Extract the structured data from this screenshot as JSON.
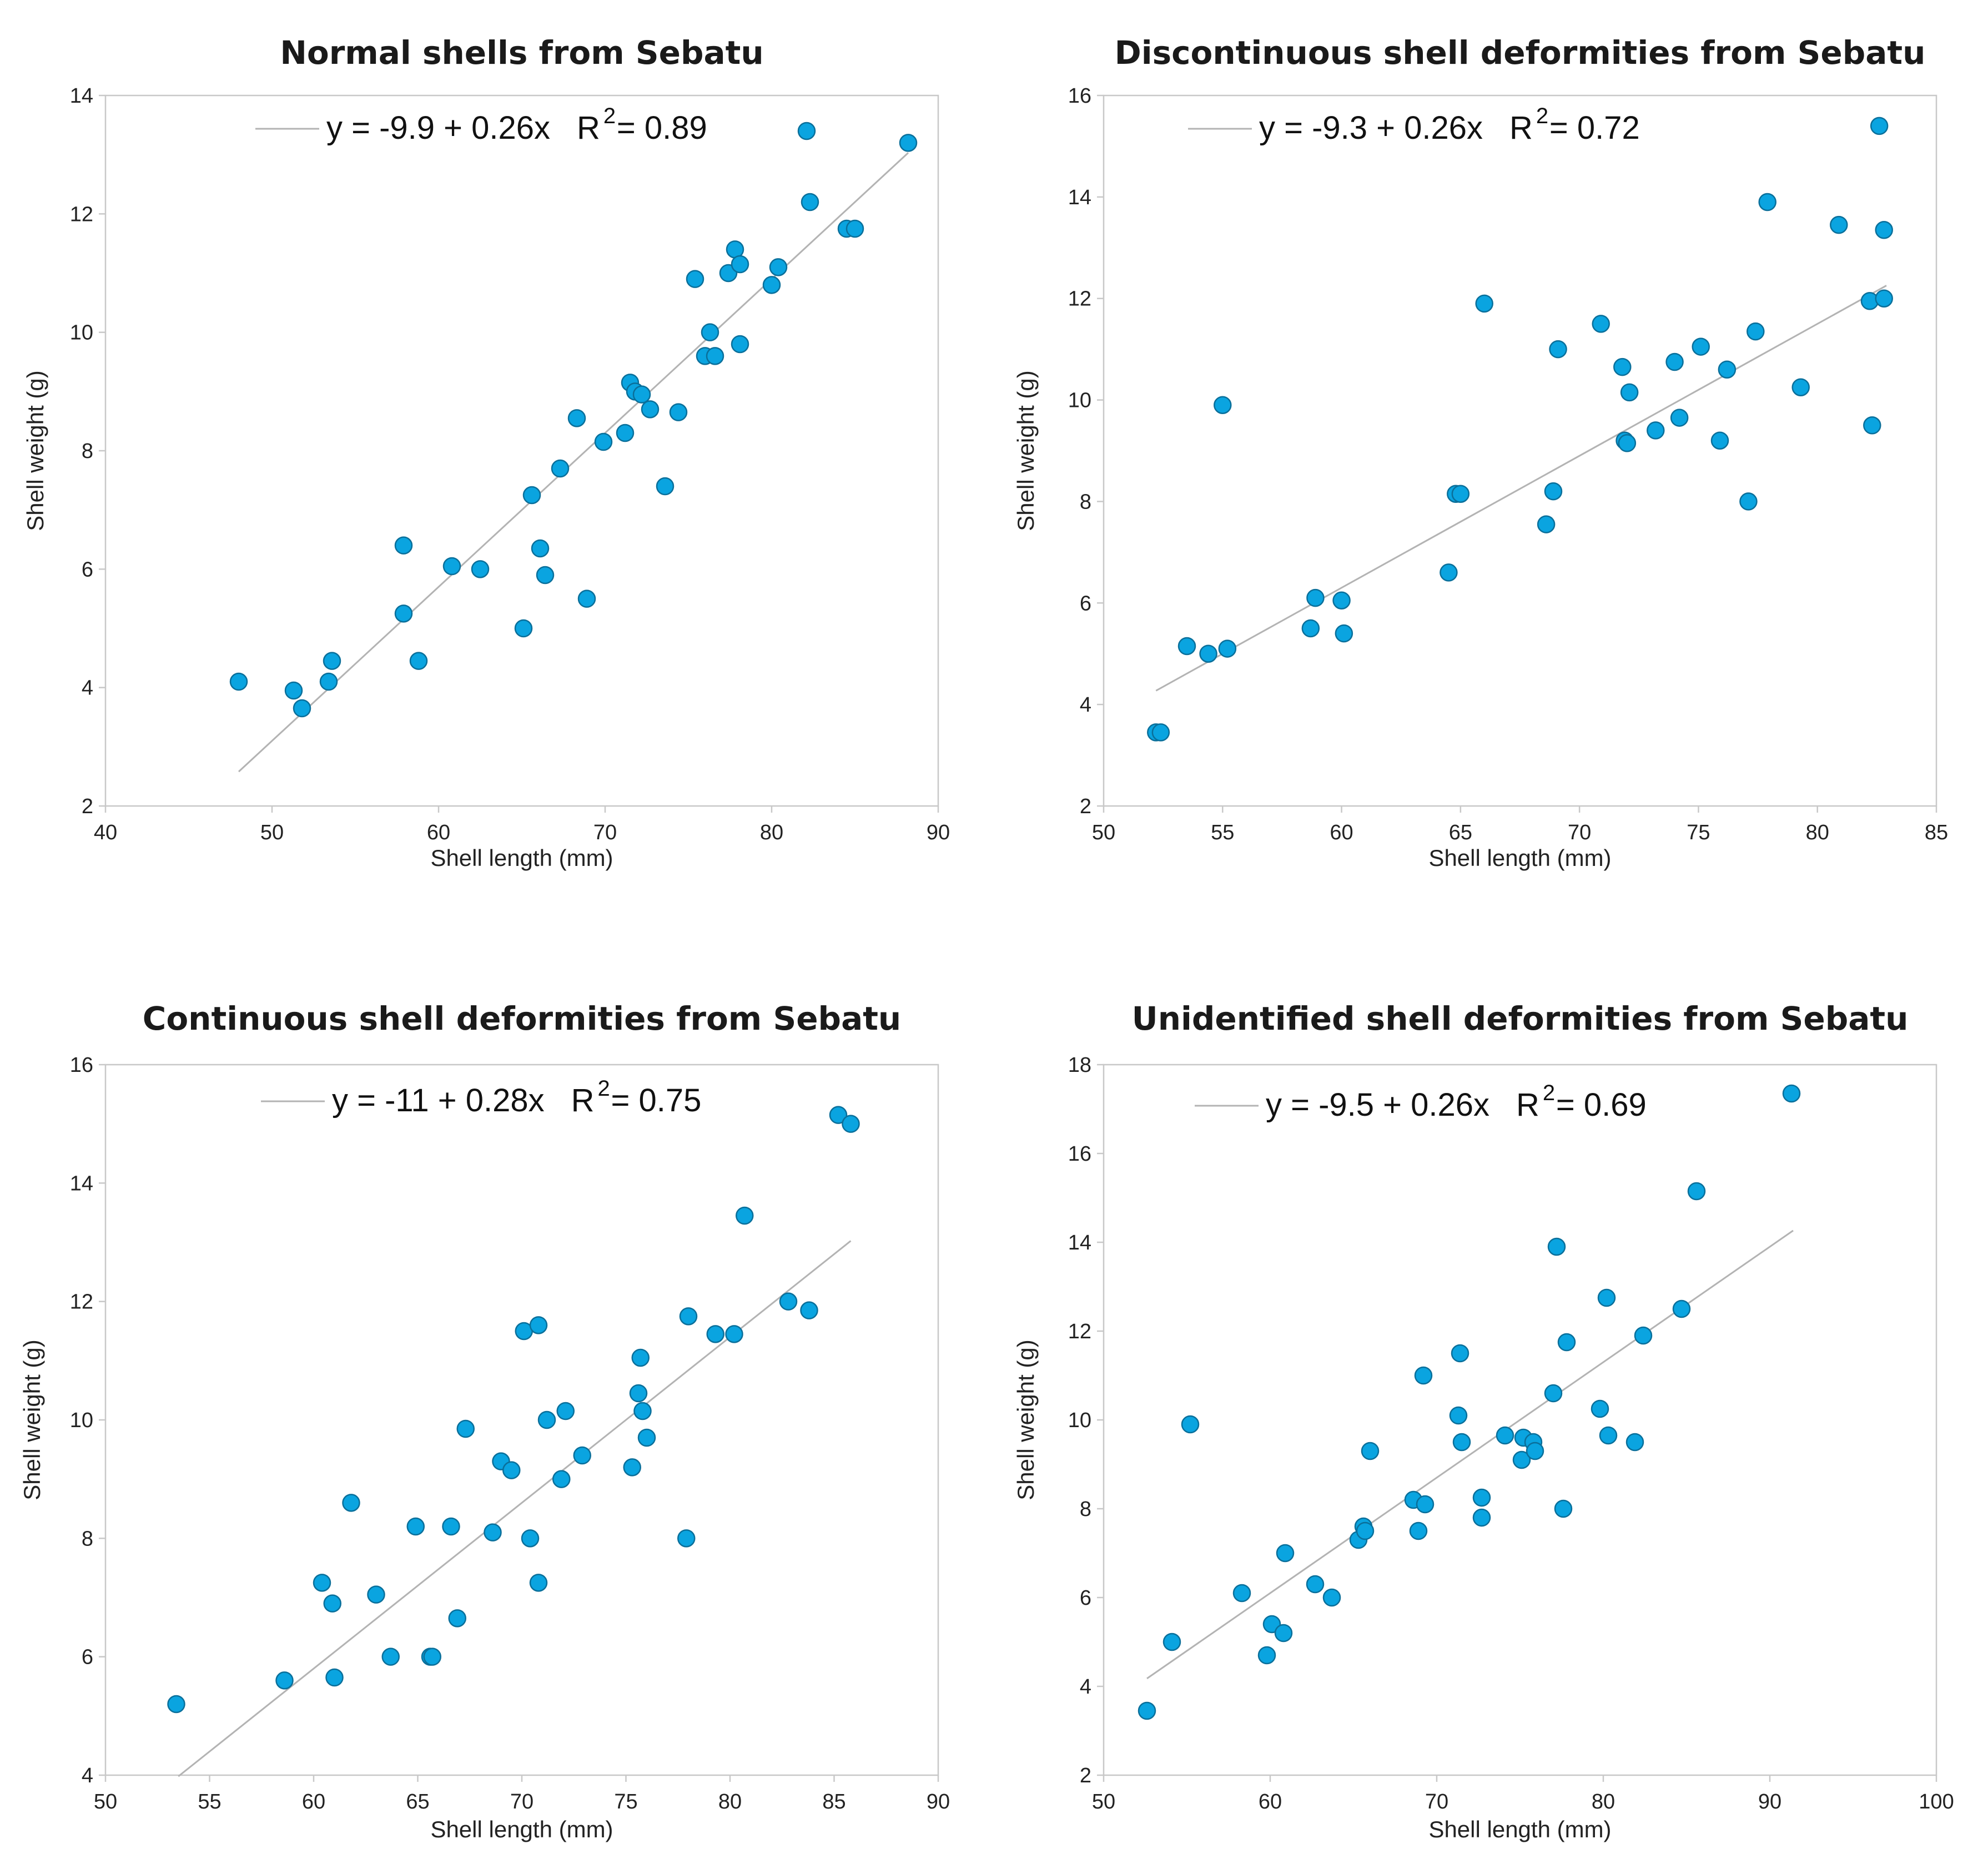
{
  "chart_data": [
    {
      "type": "scatter",
      "title": "Normal shells from Sebatu",
      "xlabel": "Shell length (mm)",
      "ylabel": "Shell weight (g)",
      "xlim": [
        40,
        90
      ],
      "ylim": [
        2,
        14
      ],
      "xticks": [
        40,
        50,
        60,
        70,
        80,
        90
      ],
      "yticks": [
        2,
        4,
        6,
        8,
        10,
        12,
        14
      ],
      "legend": {
        "equation": "y = -9.9 + 0.26x",
        "r_label": "R",
        "r_sup": "2",
        "r_value": "= 0.89"
      },
      "fit": {
        "intercept": -9.9,
        "slope": 0.26,
        "x_range": [
          48,
          88.2
        ]
      },
      "points": [
        [
          48,
          4.1
        ],
        [
          51.3,
          3.95
        ],
        [
          51.8,
          3.65
        ],
        [
          53.4,
          4.1
        ],
        [
          53.6,
          4.45
        ],
        [
          57.9,
          6.4
        ],
        [
          57.9,
          5.25
        ],
        [
          58.8,
          4.45
        ],
        [
          60.8,
          6.05
        ],
        [
          62.5,
          6.0
        ],
        [
          65.1,
          5.0
        ],
        [
          65.6,
          7.25
        ],
        [
          66.1,
          6.35
        ],
        [
          66.4,
          5.9
        ],
        [
          67.3,
          7.7
        ],
        [
          68.3,
          8.55
        ],
        [
          68.9,
          5.5
        ],
        [
          69.9,
          8.15
        ],
        [
          71.2,
          8.3
        ],
        [
          71.5,
          9.15
        ],
        [
          71.8,
          9.0
        ],
        [
          72.2,
          8.95
        ],
        [
          72.7,
          8.7
        ],
        [
          73.6,
          7.4
        ],
        [
          74.4,
          8.65
        ],
        [
          75.4,
          10.9
        ],
        [
          76.0,
          9.6
        ],
        [
          76.3,
          10.0
        ],
        [
          76.6,
          9.6
        ],
        [
          77.4,
          11.0
        ],
        [
          77.8,
          11.4
        ],
        [
          78.1,
          11.15
        ],
        [
          78.1,
          9.8
        ],
        [
          80.0,
          10.8
        ],
        [
          80.4,
          11.1
        ],
        [
          82.1,
          13.4
        ],
        [
          82.3,
          12.2
        ],
        [
          84.5,
          11.75
        ],
        [
          85.0,
          11.75
        ],
        [
          88.2,
          13.2
        ]
      ]
    },
    {
      "type": "scatter",
      "title": "Discontinuous shell deformities from Sebatu",
      "xlabel": "Shell length (mm)",
      "ylabel": "Shell weight (g)",
      "xlim": [
        50,
        85
      ],
      "ylim": [
        2,
        16
      ],
      "xticks": [
        50,
        55,
        60,
        65,
        70,
        75,
        80,
        85
      ],
      "yticks": [
        2,
        4,
        6,
        8,
        10,
        12,
        14,
        16
      ],
      "legend": {
        "equation": "y = -9.3 + 0.26x",
        "r_label": "R",
        "r_sup": "2",
        "r_value": "= 0.72"
      },
      "fit": {
        "intercept": -9.3,
        "slope": 0.26,
        "x_range": [
          52.2,
          82.9
        ]
      },
      "points": [
        [
          52.2,
          3.45
        ],
        [
          52.4,
          3.45
        ],
        [
          53.5,
          5.15
        ],
        [
          54.4,
          5.0
        ],
        [
          55.0,
          9.9
        ],
        [
          55.2,
          5.1
        ],
        [
          58.7,
          5.5
        ],
        [
          58.9,
          6.1
        ],
        [
          60.0,
          6.05
        ],
        [
          60.1,
          5.4
        ],
        [
          64.5,
          6.6
        ],
        [
          64.8,
          8.15
        ],
        [
          65.0,
          8.15
        ],
        [
          66.0,
          11.9
        ],
        [
          68.6,
          7.55
        ],
        [
          68.9,
          8.2
        ],
        [
          69.1,
          11.0
        ],
        [
          70.9,
          11.5
        ],
        [
          71.8,
          10.65
        ],
        [
          71.9,
          9.2
        ],
        [
          72.0,
          9.15
        ],
        [
          72.1,
          10.15
        ],
        [
          73.2,
          9.4
        ],
        [
          74.0,
          10.75
        ],
        [
          74.2,
          9.65
        ],
        [
          75.1,
          11.05
        ],
        [
          75.9,
          9.2
        ],
        [
          76.2,
          10.6
        ],
        [
          77.1,
          8.0
        ],
        [
          77.4,
          11.35
        ],
        [
          77.9,
          13.9
        ],
        [
          79.3,
          10.25
        ],
        [
          80.9,
          13.45
        ],
        [
          82.2,
          11.95
        ],
        [
          82.3,
          9.5
        ],
        [
          82.6,
          15.4
        ],
        [
          82.8,
          13.35
        ],
        [
          82.8,
          12.0
        ]
      ]
    },
    {
      "type": "scatter",
      "title": "Continuous shell deformities from Sebatu",
      "xlabel": "Shell length (mm)",
      "ylabel": "Shell weight (g)",
      "xlim": [
        50,
        90
      ],
      "ylim": [
        4,
        16
      ],
      "xticks": [
        50,
        55,
        60,
        65,
        70,
        75,
        80,
        85,
        90
      ],
      "yticks": [
        4,
        6,
        8,
        10,
        12,
        14,
        16
      ],
      "legend": {
        "equation": "y = -11 + 0.28x",
        "r_label": "R",
        "r_sup": "2",
        "r_value": "= 0.75"
      },
      "fit": {
        "intercept": -11,
        "slope": 0.28,
        "x_range": [
          53.5,
          85.8
        ]
      },
      "points": [
        [
          53.4,
          5.2
        ],
        [
          58.6,
          5.6
        ],
        [
          60.4,
          7.25
        ],
        [
          60.9,
          6.9
        ],
        [
          61.0,
          5.65
        ],
        [
          61.8,
          8.6
        ],
        [
          63.0,
          7.05
        ],
        [
          63.7,
          6.0
        ],
        [
          64.9,
          8.2
        ],
        [
          65.6,
          6.0
        ],
        [
          65.7,
          6.0
        ],
        [
          66.6,
          8.2
        ],
        [
          66.9,
          6.65
        ],
        [
          67.3,
          9.85
        ],
        [
          68.6,
          8.1
        ],
        [
          69.0,
          9.3
        ],
        [
          69.5,
          9.15
        ],
        [
          70.1,
          11.5
        ],
        [
          70.4,
          8.0
        ],
        [
          70.8,
          11.6
        ],
        [
          70.8,
          7.25
        ],
        [
          71.2,
          10.0
        ],
        [
          71.9,
          9.0
        ],
        [
          72.1,
          10.15
        ],
        [
          72.9,
          9.4
        ],
        [
          75.3,
          9.2
        ],
        [
          75.6,
          10.45
        ],
        [
          75.7,
          11.05
        ],
        [
          75.8,
          10.15
        ],
        [
          76.0,
          9.7
        ],
        [
          77.9,
          8.0
        ],
        [
          78.0,
          11.75
        ],
        [
          79.3,
          11.45
        ],
        [
          80.2,
          11.45
        ],
        [
          80.7,
          13.45
        ],
        [
          82.8,
          12.0
        ],
        [
          83.8,
          11.85
        ],
        [
          85.2,
          15.15
        ],
        [
          85.8,
          15.0
        ]
      ]
    },
    {
      "type": "scatter",
      "title": "Unidentified shell deformities from Sebatu",
      "xlabel": "Shell length (mm)",
      "ylabel": "Shell weight (g)",
      "xlim": [
        50,
        100
      ],
      "ylim": [
        2,
        18
      ],
      "xticks": [
        50,
        60,
        70,
        80,
        90,
        100
      ],
      "yticks": [
        2,
        4,
        6,
        8,
        10,
        12,
        14,
        16,
        18
      ],
      "legend": {
        "equation": "y = -9.5 + 0.26x",
        "r_label": "R",
        "r_sup": "2",
        "r_value": "= 0.69"
      },
      "fit": {
        "intercept": -9.5,
        "slope": 0.26,
        "x_range": [
          52.6,
          91.4
        ]
      },
      "points": [
        [
          52.6,
          3.45
        ],
        [
          54.1,
          5.0
        ],
        [
          55.2,
          9.9
        ],
        [
          58.3,
          6.1
        ],
        [
          59.8,
          4.7
        ],
        [
          60.1,
          5.4
        ],
        [
          60.8,
          5.2
        ],
        [
          60.9,
          7.0
        ],
        [
          62.7,
          6.3
        ],
        [
          63.7,
          6.0
        ],
        [
          65.3,
          7.3
        ],
        [
          65.6,
          7.6
        ],
        [
          65.7,
          7.5
        ],
        [
          66.0,
          9.3
        ],
        [
          68.6,
          8.2
        ],
        [
          68.9,
          7.5
        ],
        [
          69.2,
          11.0
        ],
        [
          69.3,
          8.1
        ],
        [
          71.3,
          10.1
        ],
        [
          71.4,
          11.5
        ],
        [
          71.5,
          9.5
        ],
        [
          72.7,
          7.8
        ],
        [
          72.7,
          8.25
        ],
        [
          74.1,
          9.65
        ],
        [
          75.1,
          9.1
        ],
        [
          75.2,
          9.6
        ],
        [
          75.8,
          9.5
        ],
        [
          75.9,
          9.3
        ],
        [
          77.0,
          10.6
        ],
        [
          77.2,
          13.9
        ],
        [
          77.6,
          8.0
        ],
        [
          77.8,
          11.75
        ],
        [
          79.8,
          10.25
        ],
        [
          80.2,
          12.75
        ],
        [
          80.3,
          9.65
        ],
        [
          81.9,
          9.5
        ],
        [
          82.4,
          11.9
        ],
        [
          84.7,
          12.5
        ],
        [
          85.6,
          15.15
        ],
        [
          91.3,
          17.35
        ]
      ]
    }
  ]
}
